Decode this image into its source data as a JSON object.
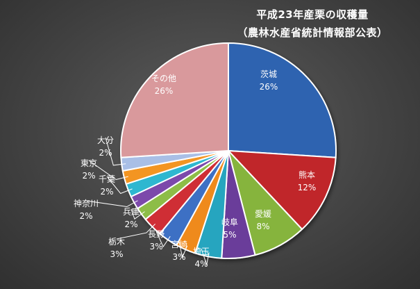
{
  "title_line1": "平成23年産栗の収穫量",
  "title_line2": "（農林水産省統計情報部公表）",
  "chart_data": {
    "type": "pie",
    "title": "平成23年産栗の収穫量（農林水産省統計情報部公表）",
    "start": "12 o'clock",
    "direction": "clockwise",
    "slices": [
      {
        "label": "茨城",
        "pct_label": "26%",
        "value": 26,
        "color": "#2e63b0"
      },
      {
        "label": "熊本",
        "pct_label": "12%",
        "value": 12,
        "color": "#c0262b"
      },
      {
        "label": "愛媛",
        "pct_label": "8%",
        "value": 8,
        "color": "#86b43c"
      },
      {
        "label": "岐阜",
        "pct_label": "5%",
        "value": 5,
        "color": "#6a3d9a"
      },
      {
        "label": "埼玉",
        "pct_label": "4%",
        "value": 4,
        "color": "#27a5bf"
      },
      {
        "label": "宮崎",
        "pct_label": "3%",
        "value": 3,
        "color": "#ef8a1d"
      },
      {
        "label": "長野",
        "pct_label": "3%",
        "value": 3,
        "color": "#3c70c4"
      },
      {
        "label": "栃木",
        "pct_label": "3%",
        "value": 3,
        "color": "#cf2f36"
      },
      {
        "label": "兵庫",
        "pct_label": "2%",
        "value": 2,
        "color": "#8dbd46"
      },
      {
        "label": "神奈川",
        "pct_label": "2%",
        "value": 2,
        "color": "#7b4aab"
      },
      {
        "label": "千葉",
        "pct_label": "2%",
        "value": 2,
        "color": "#2db7d0"
      },
      {
        "label": "東京",
        "pct_label": "2%",
        "value": 2,
        "color": "#f39524"
      },
      {
        "label": "大分",
        "pct_label": "2%",
        "value": 2,
        "color": "#a9bfe6"
      },
      {
        "label": "その他",
        "pct_label": "26%",
        "value": 26,
        "color": "#d9999c"
      }
    ]
  }
}
